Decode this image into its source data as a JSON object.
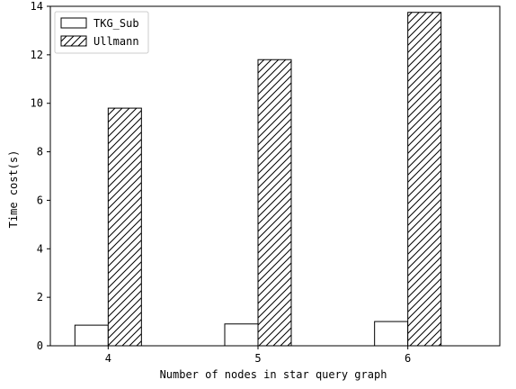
{
  "chart_data": {
    "type": "bar",
    "categories": [
      "4",
      "5",
      "6"
    ],
    "series": [
      {
        "name": "TKG_Sub",
        "values": [
          0.85,
          0.9,
          1.0
        ],
        "fill": "white"
      },
      {
        "name": "Ullmann",
        "values": [
          9.8,
          11.8,
          13.75
        ],
        "fill": "hatch"
      }
    ],
    "xlabel": "Number of nodes in star query graph",
    "ylabel": "Time cost(s)",
    "ylim": [
      0,
      14
    ],
    "yticks": [
      0,
      2,
      4,
      6,
      8,
      10,
      12,
      14
    ],
    "grid": false,
    "legend_position": "top-left"
  },
  "colors": {
    "edge": "#000000",
    "background": "#ffffff"
  }
}
